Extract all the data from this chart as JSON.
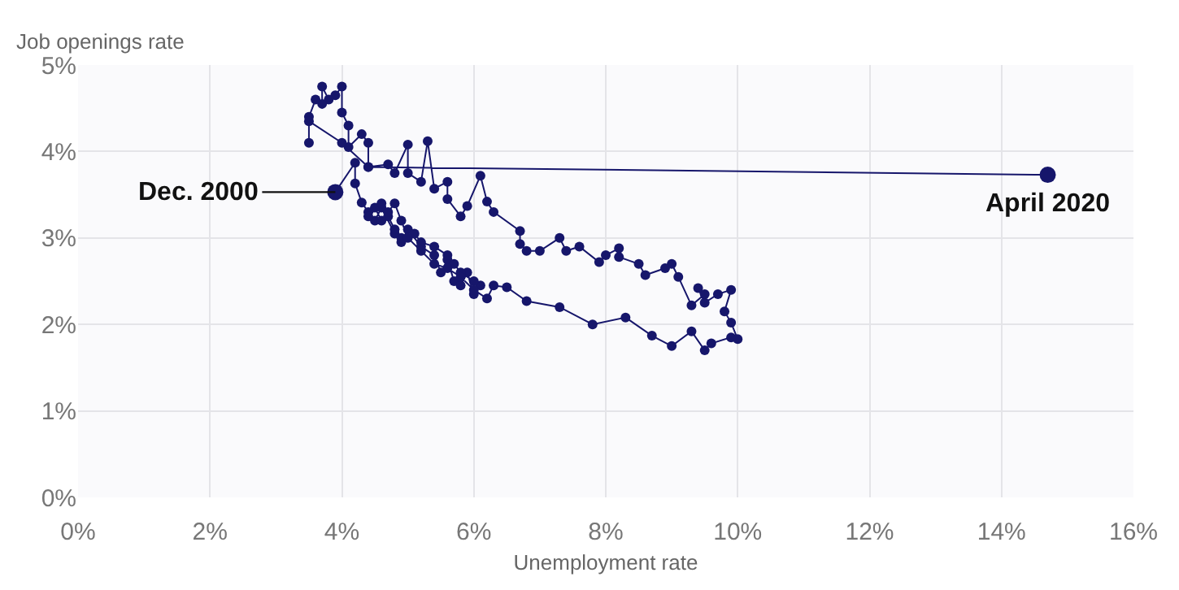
{
  "chart_data": {
    "type": "line",
    "xlabel": "Unemployment rate",
    "ylabel": "Job openings rate",
    "marker": "circle",
    "grid": true,
    "xlim": [
      0,
      16
    ],
    "ylim": [
      0,
      5
    ],
    "xticks": [
      {
        "value": 0,
        "label": "0%"
      },
      {
        "value": 2,
        "label": "2%"
      },
      {
        "value": 4,
        "label": "4%"
      },
      {
        "value": 6,
        "label": "6%"
      },
      {
        "value": 8,
        "label": "8%"
      },
      {
        "value": 10,
        "label": "10%"
      },
      {
        "value": 12,
        "label": "12%"
      },
      {
        "value": 14,
        "label": "14%"
      },
      {
        "value": 16,
        "label": "16%"
      }
    ],
    "yticks": [
      {
        "value": 0,
        "label": "0%"
      },
      {
        "value": 1,
        "label": "1%"
      },
      {
        "value": 2,
        "label": "2%"
      },
      {
        "value": 3,
        "label": "3%"
      },
      {
        "value": 4,
        "label": "4%"
      },
      {
        "value": 5,
        "label": "5%"
      }
    ],
    "annotations": [
      {
        "text": "Dec. 2000",
        "x": 3.9,
        "y": 3.53
      },
      {
        "text": "April 2020",
        "x": 14.7,
        "y": 3.73
      }
    ],
    "series": [
      {
        "color": "#16166b",
        "x": [
          3.9,
          4.2,
          4.2,
          4.3,
          4.4,
          4.5,
          4.6,
          4.8,
          4.9,
          5.0,
          5.2,
          5.4,
          5.5,
          5.6,
          5.7,
          5.8,
          5.9,
          6.0,
          6.1,
          6.0,
          5.8,
          5.7,
          5.6,
          5.4,
          5.2,
          5.1,
          4.9,
          4.8,
          4.7,
          4.6,
          4.5,
          4.4,
          4.6,
          4.7,
          4.8,
          4.9,
          5.0,
          5.2,
          5.4,
          5.6,
          5.8,
          6.0,
          6.2,
          6.3,
          6.5,
          6.8,
          7.3,
          7.8,
          8.3,
          8.7,
          9.0,
          9.3,
          9.5,
          9.6,
          9.9,
          10.0,
          9.9,
          9.8,
          9.9,
          9.7,
          9.5,
          9.4,
          9.5,
          9.3,
          9.1,
          9.0,
          8.9,
          8.6,
          8.5,
          8.2,
          8.2,
          8.0,
          7.9,
          7.6,
          7.4,
          7.3,
          7.0,
          6.8,
          6.7,
          6.7,
          6.3,
          6.2,
          6.1,
          5.9,
          5.8,
          5.6,
          5.6,
          5.4,
          5.3,
          5.2,
          5.0,
          5.0,
          4.8,
          4.7,
          4.4,
          4.4,
          4.3,
          4.1,
          4.1,
          4.0,
          4.0,
          3.9,
          3.8,
          3.7,
          3.7,
          3.6,
          3.5,
          3.5,
          3.5,
          4.0,
          4.4,
          14.7
        ],
        "values": [
          3.53,
          3.87,
          3.63,
          3.41,
          3.3,
          3.2,
          3.35,
          3.05,
          2.95,
          3.1,
          2.9,
          2.8,
          2.6,
          2.75,
          2.5,
          2.45,
          2.6,
          2.35,
          2.45,
          2.5,
          2.6,
          2.7,
          2.8,
          2.9,
          2.95,
          3.05,
          3.0,
          3.1,
          3.25,
          3.2,
          3.35,
          3.25,
          3.4,
          3.3,
          3.4,
          3.2,
          3.0,
          2.85,
          2.7,
          2.65,
          2.55,
          2.4,
          2.3,
          2.45,
          2.43,
          2.27,
          2.2,
          2.0,
          2.08,
          1.87,
          1.75,
          1.92,
          1.7,
          1.78,
          1.85,
          1.83,
          2.02,
          2.15,
          2.4,
          2.35,
          2.25,
          2.42,
          2.35,
          2.22,
          2.55,
          2.7,
          2.65,
          2.57,
          2.7,
          2.78,
          2.88,
          2.8,
          2.72,
          2.9,
          2.85,
          3.0,
          2.85,
          2.85,
          2.93,
          3.08,
          3.3,
          3.42,
          3.72,
          3.37,
          3.25,
          3.45,
          3.65,
          3.57,
          4.12,
          3.65,
          3.75,
          4.08,
          3.75,
          3.85,
          3.82,
          4.1,
          4.2,
          4.05,
          4.3,
          4.45,
          4.75,
          4.65,
          4.6,
          4.75,
          4.55,
          4.6,
          4.4,
          4.1,
          4.35,
          4.1,
          3.82,
          3.73
        ]
      }
    ]
  }
}
